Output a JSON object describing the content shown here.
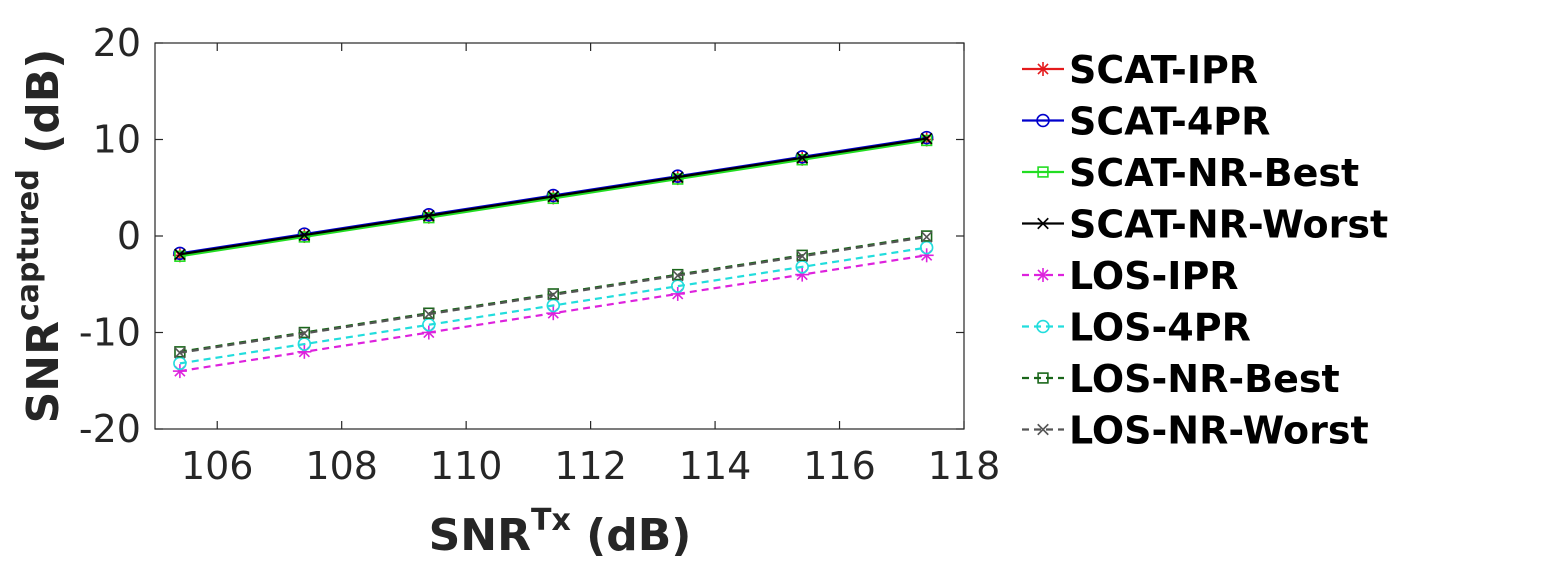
{
  "chart_data": {
    "type": "line",
    "xlabel": {
      "main": "SNR",
      "sup": "Tx",
      "unit": " (dB)"
    },
    "ylabel": {
      "main": "SNR",
      "sup": "captured",
      "unit": " (dB)"
    },
    "xlim": [
      105,
      118
    ],
    "ylim": [
      -20,
      20
    ],
    "xticks": [
      106,
      108,
      110,
      112,
      114,
      116,
      118
    ],
    "yticks": [
      -20,
      -10,
      0,
      10,
      20
    ],
    "grid": false,
    "legend_position": "outside-right",
    "x": [
      105.4,
      107.4,
      109.4,
      111.4,
      113.4,
      115.4,
      117.4
    ],
    "series": [
      {
        "name": "SCAT-IPR",
        "values": [
          -2.0,
          0.0,
          2.0,
          4.0,
          6.0,
          8.0,
          10.0
        ],
        "color": "#e41a1c",
        "marker": "asterisk",
        "dash": "solid"
      },
      {
        "name": "SCAT-4PR",
        "values": [
          -1.8,
          0.2,
          2.2,
          4.2,
          6.2,
          8.2,
          10.2
        ],
        "color": "#0000cc",
        "marker": "circle",
        "dash": "solid"
      },
      {
        "name": "SCAT-NR-Best",
        "values": [
          -2.1,
          -0.1,
          1.9,
          3.9,
          5.9,
          7.9,
          9.9
        ],
        "color": "#22dd22",
        "marker": "square",
        "dash": "solid"
      },
      {
        "name": "SCAT-NR-Worst",
        "values": [
          -1.9,
          0.1,
          2.1,
          4.1,
          6.1,
          8.1,
          10.1
        ],
        "color": "#000000",
        "marker": "x",
        "dash": "solid"
      },
      {
        "name": "LOS-IPR",
        "values": [
          -14.0,
          -12.0,
          -10.0,
          -8.0,
          -6.0,
          -4.0,
          -2.0
        ],
        "color": "#dd22dd",
        "marker": "asterisk",
        "dash": "dashed"
      },
      {
        "name": "LOS-4PR",
        "values": [
          -13.2,
          -11.2,
          -9.2,
          -7.2,
          -5.2,
          -3.2,
          -1.2
        ],
        "color": "#22dddd",
        "marker": "circle",
        "dash": "dashed"
      },
      {
        "name": "LOS-NR-Best",
        "values": [
          -12.0,
          -10.0,
          -8.0,
          -6.0,
          -4.0,
          -2.0,
          0.0
        ],
        "color": "#1a661a",
        "marker": "square",
        "dash": "dashed"
      },
      {
        "name": "LOS-NR-Worst",
        "values": [
          -12.1,
          -10.1,
          -8.1,
          -6.1,
          -4.1,
          -2.1,
          -0.1
        ],
        "color": "#555555",
        "marker": "x",
        "dash": "dashed"
      }
    ]
  }
}
